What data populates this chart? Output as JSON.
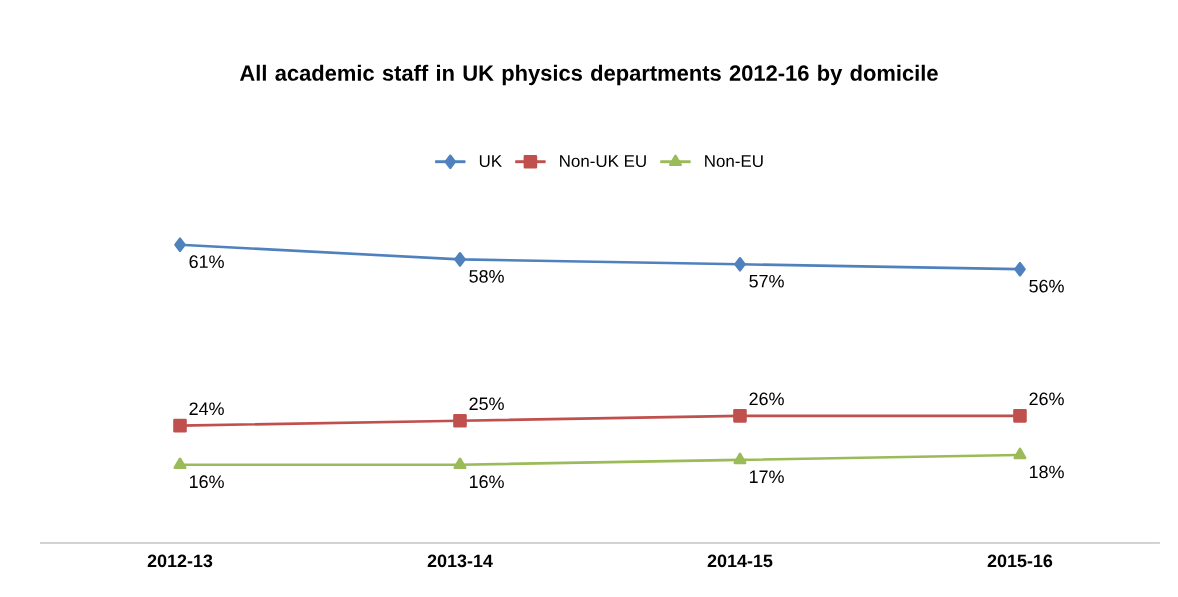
{
  "chart_data": {
    "type": "line",
    "title": "All academic staff in UK physics departments 2012-16 by domicile",
    "categories": [
      "2012-13",
      "2013-14",
      "2014-15",
      "2015-16"
    ],
    "series": [
      {
        "name": "UK",
        "color": "#4f81bd",
        "marker": "diamond",
        "values": [
          61,
          58,
          57,
          56
        ],
        "value_labels": [
          "61%",
          "58%",
          "57%",
          "56%"
        ]
      },
      {
        "name": "Non-UK EU",
        "color": "#c0504d",
        "marker": "square",
        "values": [
          24,
          25,
          26,
          26
        ],
        "value_labels": [
          "24%",
          "25%",
          "26%",
          "26%"
        ]
      },
      {
        "name": "Non-EU",
        "color": "#9bbb59",
        "marker": "triangle",
        "values": [
          16,
          16,
          17,
          18
        ],
        "value_labels": [
          "16%",
          "16%",
          "17%",
          "18%"
        ]
      }
    ],
    "legend": "top",
    "line_style": "solid"
  }
}
